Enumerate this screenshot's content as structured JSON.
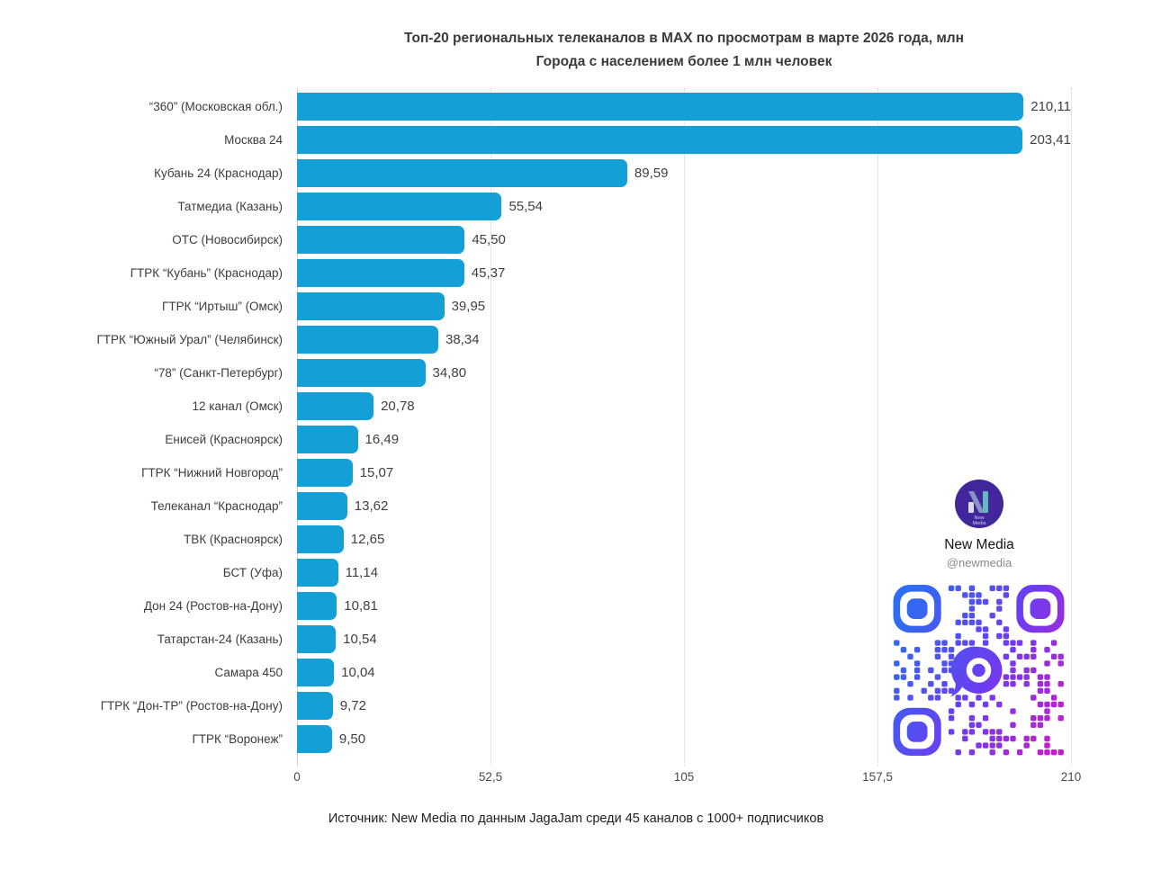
{
  "header": {
    "title": "Топ-20 региональных телеканалов в MAX по просмотрам в марте 2026 года, млн",
    "subtitle": "Города с населением более 1 млн человек"
  },
  "footer": {
    "source": "Источник: New Media по данным JagaJam среди 45 каналов с 1000+ подписчиков"
  },
  "branding": {
    "name": "New Media",
    "handle": "@newmedia",
    "logo_line1": "New",
    "logo_line2": "Media",
    "logo_color": "#41279b"
  },
  "colors": {
    "bar": "#14a0d7",
    "qr_gradient_start": "#2f6bf3",
    "qr_gradient_mid": "#6d3cf0",
    "qr_gradient_end": "#c01fd0"
  },
  "chart_data": {
    "type": "bar",
    "orientation": "horizontal",
    "title": "Топ-20 региональных телеканалов в MAX по просмотрам в марте 2026 года, млн",
    "subtitle": "Города с населением более 1 млн человек",
    "categories": [
      "“360” (Московская обл.)",
      "Москва 24",
      "Кубань 24 (Краснодар)",
      "Татмедиа (Казань)",
      "ОТС (Новосибирск)",
      "ГТРК “Кубань” (Краснодар)",
      "ГТРК “Иртыш” (Омск)",
      "ГТРК “Южный Урал” (Челябинск)",
      "“78” (Санкт-Петербург)",
      "12 канал (Омск)",
      "Енисей (Красноярск)",
      "ГТРК “Нижний Новгород”",
      "Телеканал “Краснодар”",
      "ТВК (Красноярск)",
      "БСТ (Уфа)",
      "Дон 24 (Ростов-на-Дону)",
      "Татарстан-24 (Казань)",
      "Самара 450",
      "ГТРК “Дон-ТР” (Ростов-на-Дону)",
      "ГТРК “Воронеж”"
    ],
    "values": [
      210.11,
      203.41,
      89.59,
      55.54,
      45.5,
      45.37,
      39.95,
      38.34,
      34.8,
      20.78,
      16.49,
      15.07,
      13.62,
      12.65,
      11.14,
      10.81,
      10.54,
      10.04,
      9.72,
      9.5
    ],
    "value_labels": [
      "210,11",
      "203,41",
      "89,59",
      "55,54",
      "45,50",
      "45,37",
      "39,95",
      "38,34",
      "34,80",
      "20,78",
      "16,49",
      "15,07",
      "13,62",
      "12,65",
      "11,14",
      "10,81",
      "10,54",
      "10,04",
      "9,72",
      "9,50"
    ],
    "xlabel": "",
    "ylabel": "",
    "xlim": [
      0,
      210
    ],
    "x_ticks": [
      "0",
      "52,5",
      "105",
      "157,5",
      "210"
    ],
    "x_tick_positions_pct": [
      0,
      25,
      50,
      75,
      100
    ],
    "grid": "vertical dotted",
    "legend": "none"
  }
}
